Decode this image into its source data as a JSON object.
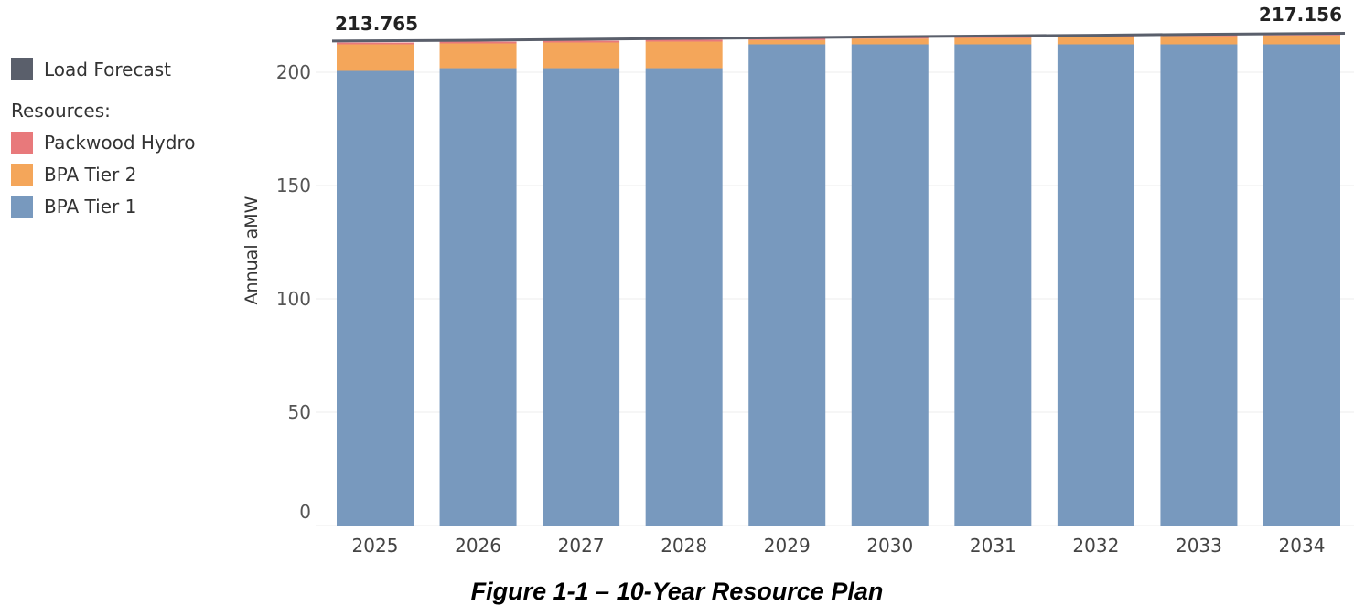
{
  "legend": {
    "line_label": "Load Forecast",
    "resources_heading": "Resources:",
    "items": [
      {
        "label": "Packwood Hydro",
        "color": "#e8797b"
      },
      {
        "label": "BPA Tier 2",
        "color": "#f4a65a"
      },
      {
        "label": "BPA Tier 1",
        "color": "#7899be"
      }
    ],
    "line_color": "#5a5f6b"
  },
  "chart_data": {
    "type": "bar",
    "stacked": true,
    "categories": [
      "2025",
      "2026",
      "2027",
      "2028",
      "2029",
      "2030",
      "2031",
      "2032",
      "2033",
      "2034"
    ],
    "series": [
      {
        "name": "BPA Tier 1",
        "color": "#7899be",
        "values": [
          200.6,
          201.8,
          201.8,
          201.8,
          212.3,
          212.3,
          212.3,
          212.3,
          212.3,
          212.3
        ]
      },
      {
        "name": "BPA Tier 2",
        "color": "#f4a65a",
        "values": [
          11.7,
          10.9,
          11.3,
          11.7,
          1.9,
          2.5,
          2.8,
          3.2,
          3.6,
          3.9
        ]
      },
      {
        "name": "Packwood Hydro",
        "color": "#e8797b",
        "values": [
          0.8,
          0.8,
          0.8,
          0.8,
          0.8,
          0.8,
          0.8,
          0.8,
          0.8,
          0.8
        ]
      }
    ],
    "line": {
      "name": "Load Forecast",
      "color": "#5a5f6b",
      "values": [
        213.765,
        214.1,
        214.5,
        214.9,
        215.2,
        215.6,
        216.0,
        216.3,
        216.7,
        217.156
      ]
    },
    "end_labels": [
      "213.765",
      "217.156"
    ],
    "ylabel": "Annual aMW",
    "yticks": [
      0,
      50,
      100,
      150,
      200
    ],
    "ylim": [
      0,
      225
    ],
    "grid": true,
    "legend_position": "left"
  },
  "caption": "Figure 1-1 – 10-Year Resource Plan"
}
